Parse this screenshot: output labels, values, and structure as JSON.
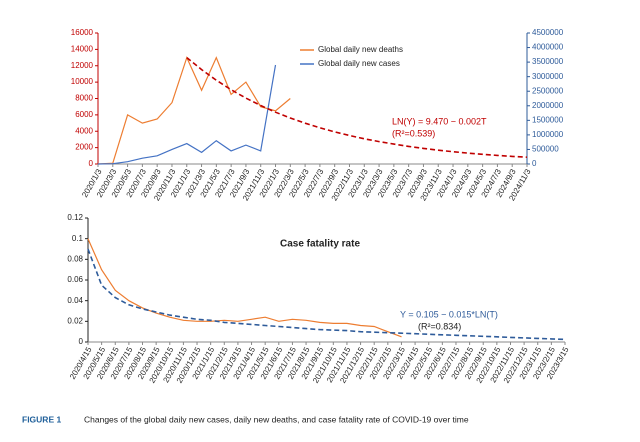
{
  "chart_data": [
    {
      "type": "line",
      "categories": [
        "2020/1/3",
        "2020/3/3",
        "2020/5/3",
        "2020/7/3",
        "2020/9/3",
        "2020/11/3",
        "2021/1/3",
        "2021/3/3",
        "2021/5/3",
        "2021/7/3",
        "2021/9/3",
        "2021/11/3",
        "2022/1/3",
        "2022/3/3",
        "2022/5/3",
        "2022/7/3",
        "2022/9/3",
        "2022/11/3",
        "2023/1/3",
        "2023/3/3",
        "2023/5/3",
        "2023/7/3",
        "2023/9/3",
        "2023/11/3",
        "2024/1/3",
        "2024/3/3",
        "2024/5/3",
        "2024/7/3",
        "2024/9/3",
        "2024/11/3"
      ],
      "series": [
        {
          "name": "Global daily new deaths",
          "color": "#ed7d31",
          "values": [
            0,
            100,
            6000,
            5000,
            5500,
            7500,
            13000,
            9000,
            13000,
            8500,
            10000,
            7000,
            6500,
            8000,
            null,
            null,
            null,
            null,
            null,
            null,
            null,
            null,
            null,
            null,
            null,
            null,
            null,
            null,
            null,
            null
          ]
        },
        {
          "name": "Global daily new cases",
          "color": "#4472c4",
          "axis": "y2",
          "values": [
            0,
            10000,
            80000,
            200000,
            280000,
            500000,
            700000,
            400000,
            800000,
            450000,
            650000,
            450000,
            3400000,
            null,
            null,
            null,
            null,
            null,
            null,
            null,
            null,
            null,
            null,
            null,
            null,
            null,
            null,
            null,
            null,
            null
          ]
        },
        {
          "color": "#c00000",
          "dashed": true,
          "values": [
            null,
            null,
            null,
            null,
            null,
            null,
            13000,
            11530,
            10230,
            9070,
            8050,
            7140,
            6330,
            5620,
            4980,
            4420,
            3920,
            3480,
            3080,
            2740,
            2430,
            2150,
            1910,
            1690,
            1500,
            1330,
            1180,
            1050,
            930,
            825
          ]
        }
      ],
      "ylim": [
        0,
        16000
      ],
      "yticks": [
        0,
        2000,
        4000,
        6000,
        8000,
        10000,
        12000,
        14000,
        16000
      ],
      "y2lim": [
        0,
        4500000
      ],
      "y2ticks": [
        0,
        500000,
        1000000,
        1500000,
        2000000,
        2500000,
        3000000,
        3500000,
        4000000,
        4500000
      ],
      "annotations": [
        "LN(Y) = 9.470 − 0.002T",
        "(R²=0.539)"
      ]
    },
    {
      "type": "line",
      "title": "Case fatality rate",
      "categories": [
        "2020/4/15",
        "2020/5/15",
        "2020/6/15",
        "2020/7/15",
        "2020/8/15",
        "2020/9/15",
        "2020/10/15",
        "2020/11/15",
        "2020/12/15",
        "2021/1/15",
        "2021/2/15",
        "2021/3/15",
        "2021/4/15",
        "2021/5/15",
        "2021/6/15",
        "2021/7/15",
        "2021/8/15",
        "2021/9/15",
        "2021/10/15",
        "2021/11/15",
        "2021/12/15",
        "2022/1/15",
        "2022/2/15",
        "2022/3/15",
        "2022/4/15",
        "2022/5/15",
        "2022/6/15",
        "2022/7/15",
        "2022/8/15",
        "2022/9/15",
        "2022/10/15",
        "2022/11/15",
        "2022/12/15",
        "2023/1/15",
        "2023/2/15",
        "2023/3/15"
      ],
      "series": [
        {
          "color": "#ed7d31",
          "values": [
            0.1,
            0.07,
            0.05,
            0.04,
            0.033,
            0.028,
            0.024,
            0.021,
            0.02,
            0.02,
            0.021,
            0.02,
            0.022,
            0.024,
            0.02,
            0.022,
            0.021,
            0.019,
            0.018,
            0.018,
            0.016,
            0.015,
            0.01,
            0.005,
            null,
            null,
            null,
            null,
            null,
            null,
            null,
            null,
            null,
            null,
            null,
            null
          ]
        },
        {
          "color": "#2e5b9a",
          "dashed": true,
          "values": [
            0.09,
            0.055,
            0.043,
            0.036,
            0.032,
            0.029,
            0.026,
            0.024,
            0.022,
            0.021,
            0.019,
            0.018,
            0.017,
            0.016,
            0.015,
            0.014,
            0.013,
            0.012,
            0.0115,
            0.011,
            0.01,
            0.0095,
            0.009,
            0.0085,
            0.008,
            0.0075,
            0.007,
            0.0065,
            0.006,
            0.0055,
            0.005,
            0.0045,
            0.004,
            0.0035,
            0.003,
            0.0025
          ]
        }
      ],
      "ylim": [
        0,
        0.12
      ],
      "yticks": [
        0,
        0.02,
        0.04,
        0.06,
        0.08,
        0.1,
        0.12
      ],
      "annotations": [
        "Y = 0.105 − 0.015*LN(T)",
        "(R²=0.834)"
      ]
    }
  ],
  "caption": {
    "label": "FIGURE 1",
    "text": "Changes of the global daily new cases, daily new deaths, and case fatality rate of COVID-19 over time"
  }
}
